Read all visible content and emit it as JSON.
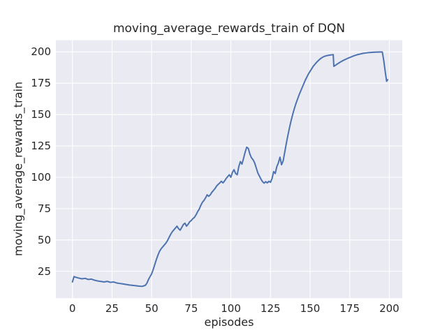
{
  "figure": {
    "title": "moving_average_rewards_train of DQN",
    "xlabel": "episodes",
    "ylabel": "moving_average_rewards_train"
  },
  "chart_data": {
    "type": "line",
    "title": "moving_average_rewards_train of DQN",
    "xlabel": "episodes",
    "ylabel": "moving_average_rewards_train",
    "grid": true,
    "legend_position": "none",
    "x_ticks": [
      0,
      25,
      50,
      75,
      100,
      125,
      150,
      175,
      200
    ],
    "y_ticks": [
      25,
      50,
      75,
      100,
      125,
      150,
      175,
      200
    ],
    "xlim": [
      -10.45,
      208.2
    ],
    "ylim": [
      3.6,
      209.3
    ],
    "colors": {
      "line": "#4c72b0",
      "plot_background": "#eaeaf2",
      "grid": "#ffffff",
      "text": "#262626",
      "figure_background": "#ffffff"
    },
    "series": [
      {
        "name": "moving_average_rewards_train",
        "color": "#4c72b0",
        "points": [
          [
            0,
            16.5
          ],
          [
            1,
            20.8
          ],
          [
            2,
            20.3
          ],
          [
            4,
            19.6
          ],
          [
            6,
            19.0
          ],
          [
            8,
            19.4
          ],
          [
            10,
            18.5
          ],
          [
            12,
            18.8
          ],
          [
            14,
            17.9
          ],
          [
            16,
            17.3
          ],
          [
            18,
            16.9
          ],
          [
            20,
            16.5
          ],
          [
            22,
            17.0
          ],
          [
            24,
            16.2
          ],
          [
            26,
            16.5
          ],
          [
            28,
            15.7
          ],
          [
            30,
            15.3
          ],
          [
            32,
            14.9
          ],
          [
            34,
            14.5
          ],
          [
            36,
            14.1
          ],
          [
            38,
            13.8
          ],
          [
            40,
            13.5
          ],
          [
            42,
            13.2
          ],
          [
            44,
            13.0
          ],
          [
            46,
            13.8
          ],
          [
            47,
            15.5
          ],
          [
            48,
            18.5
          ],
          [
            49,
            20.8
          ],
          [
            50,
            23.0
          ],
          [
            51,
            26.5
          ],
          [
            52,
            30.5
          ],
          [
            53,
            34.5
          ],
          [
            54,
            38.0
          ],
          [
            55,
            41.0
          ],
          [
            56,
            43.0
          ],
          [
            57,
            44.5
          ],
          [
            58,
            46.0
          ],
          [
            59,
            47.5
          ],
          [
            60,
            49.5
          ],
          [
            61,
            52.0
          ],
          [
            62,
            54.5
          ],
          [
            63,
            56.5
          ],
          [
            64,
            58.0
          ],
          [
            65,
            59.5
          ],
          [
            66,
            61.0
          ],
          [
            67,
            59.0
          ],
          [
            68,
            57.8
          ],
          [
            69,
            60.0
          ],
          [
            70,
            62.3
          ],
          [
            71,
            63.4
          ],
          [
            72,
            61.0
          ],
          [
            73,
            62.5
          ],
          [
            74,
            64.5
          ],
          [
            75,
            65.5
          ],
          [
            76,
            67.0
          ],
          [
            77,
            68.0
          ],
          [
            78,
            70.0
          ],
          [
            79,
            72.5
          ],
          [
            80,
            74.5
          ],
          [
            81,
            77.5
          ],
          [
            82,
            80.0
          ],
          [
            83,
            81.5
          ],
          [
            84,
            83.5
          ],
          [
            85,
            86.0
          ],
          [
            86,
            84.8
          ],
          [
            87,
            86.0
          ],
          [
            88,
            88.0
          ],
          [
            89,
            89.5
          ],
          [
            90,
            91.0
          ],
          [
            91,
            93.0
          ],
          [
            92,
            94.3
          ],
          [
            93,
            95.5
          ],
          [
            94,
            96.8
          ],
          [
            95,
            95.5
          ],
          [
            96,
            97.0
          ],
          [
            97,
            99.0
          ],
          [
            98,
            100.5
          ],
          [
            99,
            102.0
          ],
          [
            100,
            100.0
          ],
          [
            101,
            104.0
          ],
          [
            102,
            106.0
          ],
          [
            103,
            103.0
          ],
          [
            104,
            102.0
          ],
          [
            105,
            108.5
          ],
          [
            106,
            112.5
          ],
          [
            107,
            110.5
          ],
          [
            108,
            115.0
          ],
          [
            109,
            120.0
          ],
          [
            110,
            124.0
          ],
          [
            111,
            123.0
          ],
          [
            112,
            118.5
          ],
          [
            113,
            115.5
          ],
          [
            114,
            114.0
          ],
          [
            115,
            111.5
          ],
          [
            116,
            107.5
          ],
          [
            117,
            103.5
          ],
          [
            118,
            101.0
          ],
          [
            119,
            98.5
          ],
          [
            120,
            96.5
          ],
          [
            121,
            95.3
          ],
          [
            122,
            96.5
          ],
          [
            123,
            95.5
          ],
          [
            124,
            96.8
          ],
          [
            125,
            96.0
          ],
          [
            126,
            99.0
          ],
          [
            127,
            104.5
          ],
          [
            128,
            103.0
          ],
          [
            129,
            108.5
          ],
          [
            130,
            111.5
          ],
          [
            131,
            116.0
          ],
          [
            132,
            110.0
          ],
          [
            133,
            113.0
          ],
          [
            134,
            120.0
          ],
          [
            135,
            127.0
          ],
          [
            136,
            133.5
          ],
          [
            137,
            139.5
          ],
          [
            138,
            145.0
          ],
          [
            139,
            150.0
          ],
          [
            140,
            154.5
          ],
          [
            141,
            158.5
          ],
          [
            142,
            162.0
          ],
          [
            143,
            165.5
          ],
          [
            144,
            168.5
          ],
          [
            145,
            171.5
          ],
          [
            146,
            174.5
          ],
          [
            147,
            177.5
          ],
          [
            148,
            180.0
          ],
          [
            149,
            182.5
          ],
          [
            150,
            184.5
          ],
          [
            151,
            186.5
          ],
          [
            152,
            188.5
          ],
          [
            153,
            190.0
          ],
          [
            154,
            191.5
          ],
          [
            155,
            192.8
          ],
          [
            156,
            194.0
          ],
          [
            157,
            195.0
          ],
          [
            158,
            195.8
          ],
          [
            159,
            196.4
          ],
          [
            160,
            196.8
          ],
          [
            161,
            197.1
          ],
          [
            162,
            197.3
          ],
          [
            163,
            197.5
          ],
          [
            164,
            197.7
          ],
          [
            164.6,
            197.8
          ],
          [
            165,
            188.5
          ],
          [
            166,
            189.3
          ],
          [
            167,
            190.2
          ],
          [
            168,
            191.0
          ],
          [
            169,
            191.8
          ],
          [
            170,
            192.5
          ],
          [
            171,
            193.2
          ],
          [
            172,
            193.8
          ],
          [
            173,
            194.4
          ],
          [
            174,
            195.0
          ],
          [
            175,
            195.5
          ],
          [
            176,
            196.0
          ],
          [
            177,
            196.5
          ],
          [
            178,
            197.0
          ],
          [
            179,
            197.4
          ],
          [
            180,
            197.8
          ],
          [
            181,
            198.1
          ],
          [
            182,
            198.4
          ],
          [
            183,
            198.7
          ],
          [
            184,
            198.9
          ],
          [
            185,
            199.1
          ],
          [
            186,
            199.3
          ],
          [
            187,
            199.4
          ],
          [
            188,
            199.5
          ],
          [
            189,
            199.6
          ],
          [
            190,
            199.7
          ],
          [
            191,
            199.75
          ],
          [
            192,
            199.8
          ],
          [
            193,
            199.85
          ],
          [
            194,
            199.9
          ],
          [
            195,
            199.9
          ],
          [
            195.6,
            199.9
          ],
          [
            196.5,
            193.0
          ],
          [
            197.5,
            183.5
          ],
          [
            198.3,
            176.5
          ],
          [
            199,
            177.8
          ]
        ]
      }
    ]
  }
}
